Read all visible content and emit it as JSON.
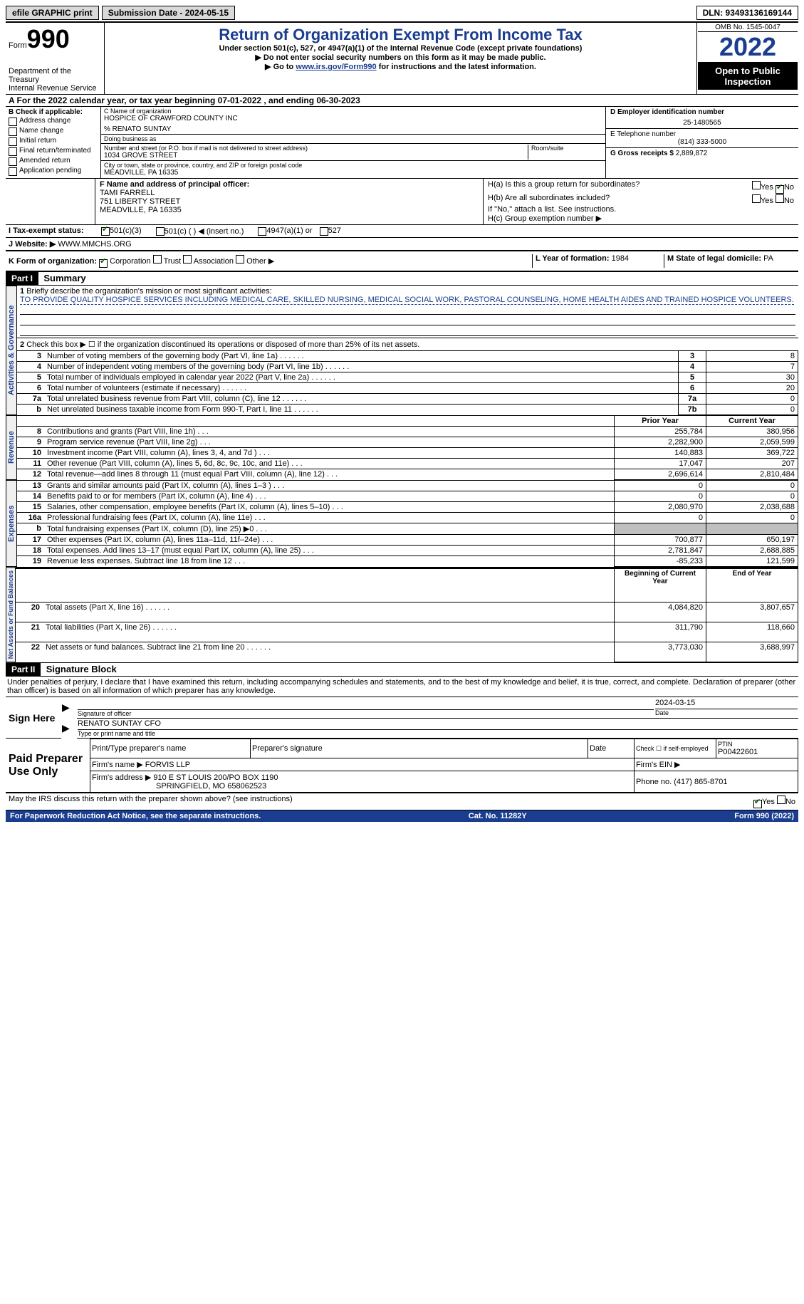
{
  "topbar": {
    "efile_label": "efile GRAPHIC print",
    "submission_date_label": "Submission Date - 2024-05-15",
    "dln_label": "DLN: 93493136169144"
  },
  "header": {
    "form_prefix": "Form",
    "form_number": "990",
    "department": "Department of the Treasury\nInternal Revenue Service",
    "title": "Return of Organization Exempt From Income Tax",
    "under_section": "Under section 501(c), 527, or 4947(a)(1) of the Internal Revenue Code (except private foundations)",
    "ssn_note": "▶ Do not enter social security numbers on this form as it may be made public.",
    "goto_prefix": "▶ Go to ",
    "goto_link": "www.irs.gov/Form990",
    "goto_suffix": " for instructions and the latest information.",
    "omb": "OMB No. 1545-0047",
    "year": "2022",
    "inspection": "Open to Public Inspection"
  },
  "section_a": {
    "text": "A For the 2022 calendar year, or tax year beginning 07-01-2022    , and ending 06-30-2023"
  },
  "section_b": {
    "label": "B Check if applicable:",
    "items": [
      "Address change",
      "Name change",
      "Initial return",
      "Final return/terminated",
      "Amended return",
      "Application pending"
    ]
  },
  "section_c": {
    "name_label": "C Name of organization",
    "org_name": "HOSPICE OF CRAWFORD COUNTY INC",
    "care_of": "% RENATO SUNTAY",
    "dba_label": "Doing business as",
    "dba": "",
    "street_label": "Number and street (or P.O. box if mail is not delivered to street address)",
    "room_label": "Room/suite",
    "street": "1034 GROVE STREET",
    "city_label": "City or town, state or province, country, and ZIP or foreign postal code",
    "city": "MEADVILLE, PA  16335"
  },
  "section_d": {
    "ein_label": "D Employer identification number",
    "ein": "25-1480565",
    "phone_label": "E Telephone number",
    "phone": "(814) 333-5000",
    "receipts_label": "G Gross receipts $",
    "receipts": "2,889,872"
  },
  "section_f": {
    "label": "F  Name and address of principal officer:",
    "name": "TAMI FARRELL",
    "street": "751 LIBERTY STREET",
    "city": "MEADVILLE, PA  16335"
  },
  "section_h": {
    "ha_label": "H(a)  Is this a group return for subordinates?",
    "hb_label": "H(b)  Are all subordinates included?",
    "hb_note": "If \"No,\" attach a list. See instructions.",
    "hc_label": "H(c)  Group exemption number ▶",
    "yes": "Yes",
    "no": "No"
  },
  "section_i": {
    "label": "I   Tax-exempt status:",
    "opt1": "501(c)(3)",
    "opt2": "501(c) (  ) ◀ (insert no.)",
    "opt3": "4947(a)(1) or",
    "opt4": "527"
  },
  "section_j": {
    "label": "J   Website: ▶",
    "value": "WWW.MMCHS.ORG"
  },
  "section_k": {
    "label": "K Form of organization:",
    "options": [
      "Corporation",
      "Trust",
      "Association",
      "Other ▶"
    ],
    "l_label": "L Year of formation:",
    "l_value": "1984",
    "m_label": "M State of legal domicile:",
    "m_value": "PA"
  },
  "parts": {
    "part1": "Part I",
    "summary": "Summary",
    "part2": "Part II",
    "sigblock": "Signature Block"
  },
  "summary": {
    "q1_label": "Briefly describe the organization's mission or most significant activities:",
    "q1_value": "TO PROVIDE QUALITY HOSPICE SERVICES INCLUDING MEDICAL CARE, SKILLED NURSING, MEDICAL SOCIAL WORK, PASTORAL COUNSELING, HOME HEALTH AIDES AND TRAINED HOSPICE VOLUNTEERS.",
    "q2": "Check this box ▶ ☐ if the organization discontinued its operations or disposed of more than 25% of its net assets.",
    "lines": [
      {
        "n": "3",
        "t": "Number of voting members of the governing body (Part VI, line 1a)",
        "b": "3",
        "v": "8"
      },
      {
        "n": "4",
        "t": "Number of independent voting members of the governing body (Part VI, line 1b)",
        "b": "4",
        "v": "7"
      },
      {
        "n": "5",
        "t": "Total number of individuals employed in calendar year 2022 (Part V, line 2a)",
        "b": "5",
        "v": "30"
      },
      {
        "n": "6",
        "t": "Total number of volunteers (estimate if necessary)",
        "b": "6",
        "v": "20"
      },
      {
        "n": "7a",
        "t": "Total unrelated business revenue from Part VIII, column (C), line 12",
        "b": "7a",
        "v": "0"
      },
      {
        "n": "b",
        "t": "Net unrelated business taxable income from Form 990-T, Part I, line 11",
        "b": "7b",
        "v": "0"
      }
    ],
    "prior_year": "Prior Year",
    "current_year": "Current Year",
    "beginning_year": "Beginning of Current Year",
    "end_year": "End of Year",
    "rev": [
      {
        "n": "8",
        "t": "Contributions and grants (Part VIII, line 1h)",
        "p": "255,784",
        "c": "380,956"
      },
      {
        "n": "9",
        "t": "Program service revenue (Part VIII, line 2g)",
        "p": "2,282,900",
        "c": "2,059,599"
      },
      {
        "n": "10",
        "t": "Investment income (Part VIII, column (A), lines 3, 4, and 7d )",
        "p": "140,883",
        "c": "369,722"
      },
      {
        "n": "11",
        "t": "Other revenue (Part VIII, column (A), lines 5, 6d, 8c, 9c, 10c, and 11e)",
        "p": "17,047",
        "c": "207"
      },
      {
        "n": "12",
        "t": "Total revenue—add lines 8 through 11 (must equal Part VIII, column (A), line 12)",
        "p": "2,696,614",
        "c": "2,810,484"
      }
    ],
    "exp": [
      {
        "n": "13",
        "t": "Grants and similar amounts paid (Part IX, column (A), lines 1–3 )",
        "p": "0",
        "c": "0"
      },
      {
        "n": "14",
        "t": "Benefits paid to or for members (Part IX, column (A), line 4)",
        "p": "0",
        "c": "0"
      },
      {
        "n": "15",
        "t": "Salaries, other compensation, employee benefits (Part IX, column (A), lines 5–10)",
        "p": "2,080,970",
        "c": "2,038,688"
      },
      {
        "n": "16a",
        "t": "Professional fundraising fees (Part IX, column (A), line 11e)",
        "p": "0",
        "c": "0"
      },
      {
        "n": "b",
        "t": "Total fundraising expenses (Part IX, column (D), line 25) ▶0",
        "p": "gray",
        "c": "gray"
      },
      {
        "n": "17",
        "t": "Other expenses (Part IX, column (A), lines 11a–11d, 11f–24e)",
        "p": "700,877",
        "c": "650,197"
      },
      {
        "n": "18",
        "t": "Total expenses. Add lines 13–17 (must equal Part IX, column (A), line 25)",
        "p": "2,781,847",
        "c": "2,688,885"
      },
      {
        "n": "19",
        "t": "Revenue less expenses. Subtract line 18 from line 12",
        "p": "-85,233",
        "c": "121,599"
      }
    ],
    "net": [
      {
        "n": "20",
        "t": "Total assets (Part X, line 16)",
        "p": "4,084,820",
        "c": "3,807,657"
      },
      {
        "n": "21",
        "t": "Total liabilities (Part X, line 26)",
        "p": "311,790",
        "c": "118,660"
      },
      {
        "n": "22",
        "t": "Net assets or fund balances. Subtract line 21 from line 20",
        "p": "3,773,030",
        "c": "3,688,997"
      }
    ],
    "side_labels": {
      "gov": "Activities & Governance",
      "rev": "Revenue",
      "exp": "Expenses",
      "net": "Net Assets or Fund Balances"
    }
  },
  "sig": {
    "declaration": "Under penalties of perjury, I declare that I have examined this return, including accompanying schedules and statements, and to the best of my knowledge and belief, it is true, correct, and complete. Declaration of preparer (other than officer) is based on all information of which preparer has any knowledge.",
    "sign_here": "Sign Here",
    "sig_officer": "Signature of officer",
    "sig_date": "Date",
    "sig_date_val": "2024-03-15",
    "officer_name": "RENATO SUNTAY CFO",
    "type_name": "Type or print name and title",
    "paid_label": "Paid Preparer Use Only",
    "prep_name_label": "Print/Type preparer's name",
    "prep_sig_label": "Preparer's signature",
    "date_label": "Date",
    "check_self": "Check ☐ if self-employed",
    "ptin_label": "PTIN",
    "ptin": "P00422601",
    "firm_name_label": "Firm's name    ▶",
    "firm_name": "FORVIS LLP",
    "firm_ein_label": "Firm's EIN ▶",
    "firm_addr_label": "Firm's address ▶",
    "firm_addr": "910 E ST LOUIS 200/PO BOX 1190",
    "firm_city": "SPRINGFIELD, MO  658062523",
    "firm_phone_label": "Phone no.",
    "firm_phone": "(417) 865-8701",
    "discuss": "May the IRS discuss this return with the preparer shown above? (see instructions)",
    "yes": "Yes",
    "no": "No"
  },
  "footer": {
    "paperwork": "For Paperwork Reduction Act Notice, see the separate instructions.",
    "cat": "Cat. No. 11282Y",
    "form": "Form 990 (2022)"
  }
}
